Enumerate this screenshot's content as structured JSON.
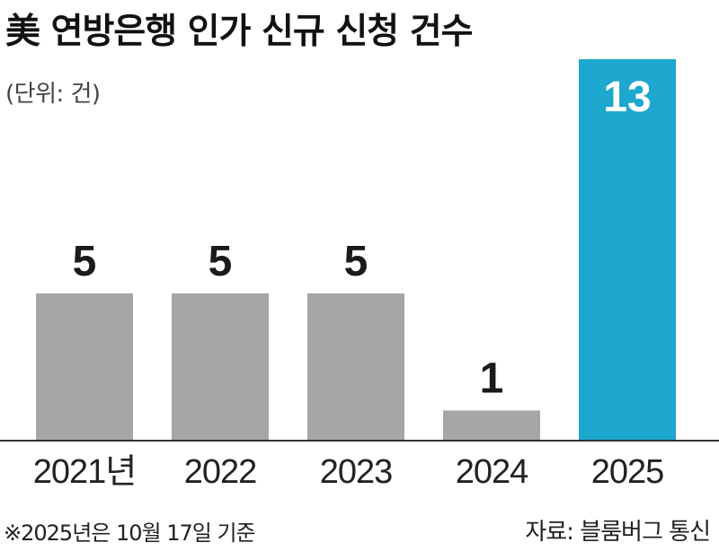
{
  "chart_data": {
    "type": "bar",
    "title": "美 연방은행 인가 신규 신청 건수",
    "unit_label": "(단위: 건)",
    "categories": [
      "2021년",
      "2022",
      "2023",
      "2024",
      "2025"
    ],
    "values": [
      5,
      5,
      5,
      1,
      13
    ],
    "data_labels": [
      "5",
      "5",
      "5",
      "1",
      "13"
    ],
    "ylim": [
      0,
      13
    ],
    "grid": false,
    "colors": {
      "default_bar": "#a6a6a6",
      "highlight_bar": "#1ea7cf",
      "highlight_label": "#ffffff",
      "label": "#1a1a1a"
    },
    "highlight_index": 4,
    "note": "※2025년은 10월 17일 기준",
    "source": "자료: 블룸버그 통신"
  }
}
